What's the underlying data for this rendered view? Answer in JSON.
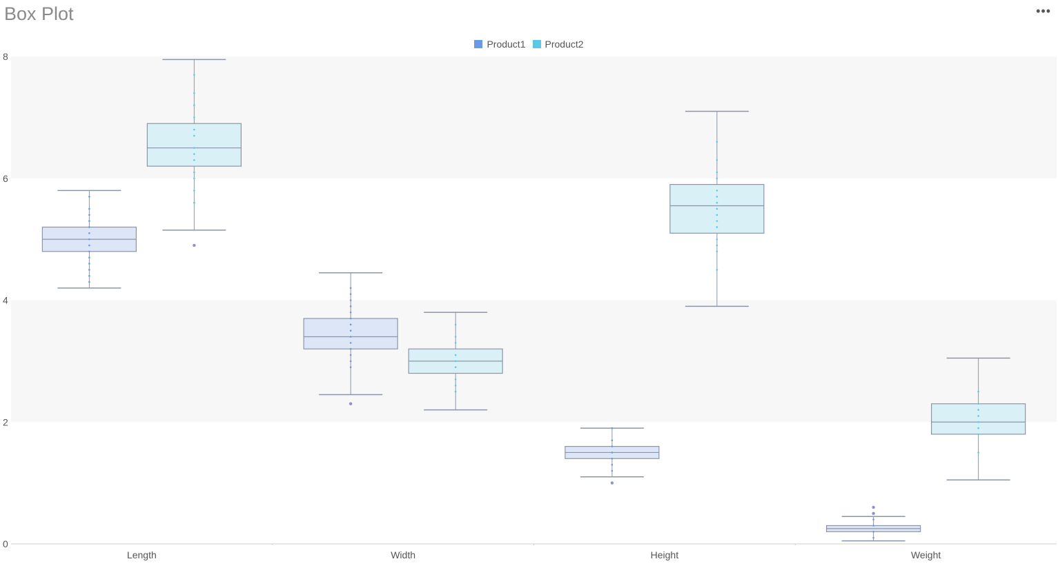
{
  "header": {
    "title": "Box Plot",
    "menu_icon": "more-horizontal-icon",
    "menu_glyph": "•••"
  },
  "colors": {
    "product1": "#6699e8",
    "product2": "#5cc8e8",
    "box_stroke": "#8a96a8",
    "band": "#f7f7f7"
  },
  "chart_data": {
    "type": "box",
    "title": "Box Plot",
    "categories": [
      "Length",
      "Width",
      "Height",
      "Weight"
    ],
    "ylim": [
      0,
      8
    ],
    "yticks": [
      0,
      2,
      4,
      6,
      8
    ],
    "legend_position": "top-center",
    "grid": "alternating bands",
    "series": [
      {
        "name": "Product1",
        "boxes": [
          {
            "min": 4.2,
            "q1": 4.8,
            "median": 5.0,
            "q3": 5.2,
            "max": 5.8,
            "outliers": [],
            "points": [
              4.3,
              4.4,
              4.5,
              4.6,
              4.7,
              4.8,
              4.9,
              5.0,
              5.1,
              5.2,
              5.3,
              5.4,
              5.5,
              5.7
            ]
          },
          {
            "min": 2.45,
            "q1": 3.2,
            "median": 3.4,
            "q3": 3.7,
            "max": 4.45,
            "outliers": [
              2.3
            ],
            "points": [
              2.9,
              3.0,
              3.1,
              3.2,
              3.3,
              3.4,
              3.5,
              3.6,
              3.7,
              3.8,
              3.9,
              4.0,
              4.1,
              4.2
            ]
          },
          {
            "min": 1.1,
            "q1": 1.4,
            "median": 1.5,
            "q3": 1.6,
            "max": 1.9,
            "outliers": [
              1.0
            ],
            "points": [
              1.2,
              1.3,
              1.4,
              1.5,
              1.6,
              1.7,
              1.9
            ]
          },
          {
            "min": 0.05,
            "q1": 0.2,
            "median": 0.25,
            "q3": 0.3,
            "max": 0.45,
            "outliers": [
              0.5,
              0.6
            ],
            "points": [
              0.1,
              0.2,
              0.3,
              0.4
            ]
          }
        ]
      },
      {
        "name": "Product2",
        "boxes": [
          {
            "min": 5.15,
            "q1": 6.2,
            "median": 6.5,
            "q3": 6.9,
            "max": 7.95,
            "outliers": [
              4.9
            ],
            "points": [
              5.6,
              5.8,
              6.0,
              6.1,
              6.3,
              6.4,
              6.5,
              6.7,
              6.8,
              7.0,
              7.2,
              7.4,
              7.7
            ]
          },
          {
            "min": 2.2,
            "q1": 2.8,
            "median": 3.0,
            "q3": 3.2,
            "max": 3.8,
            "outliers": [],
            "points": [
              2.5,
              2.6,
              2.7,
              2.9,
              3.0,
              3.1,
              3.3,
              3.4,
              3.6
            ]
          },
          {
            "min": 3.9,
            "q1": 5.1,
            "median": 5.55,
            "q3": 5.9,
            "max": 7.1,
            "outliers": [],
            "points": [
              4.5,
              4.8,
              4.9,
              5.0,
              5.2,
              5.3,
              5.4,
              5.5,
              5.6,
              5.7,
              5.8,
              6.0,
              6.1,
              6.3,
              6.6
            ]
          },
          {
            "min": 1.05,
            "q1": 1.8,
            "median": 2.0,
            "q3": 2.3,
            "max": 3.05,
            "outliers": [],
            "points": [
              1.5,
              1.8,
              1.9,
              2.0,
              2.1,
              2.2,
              2.3,
              2.5
            ]
          }
        ]
      }
    ]
  }
}
